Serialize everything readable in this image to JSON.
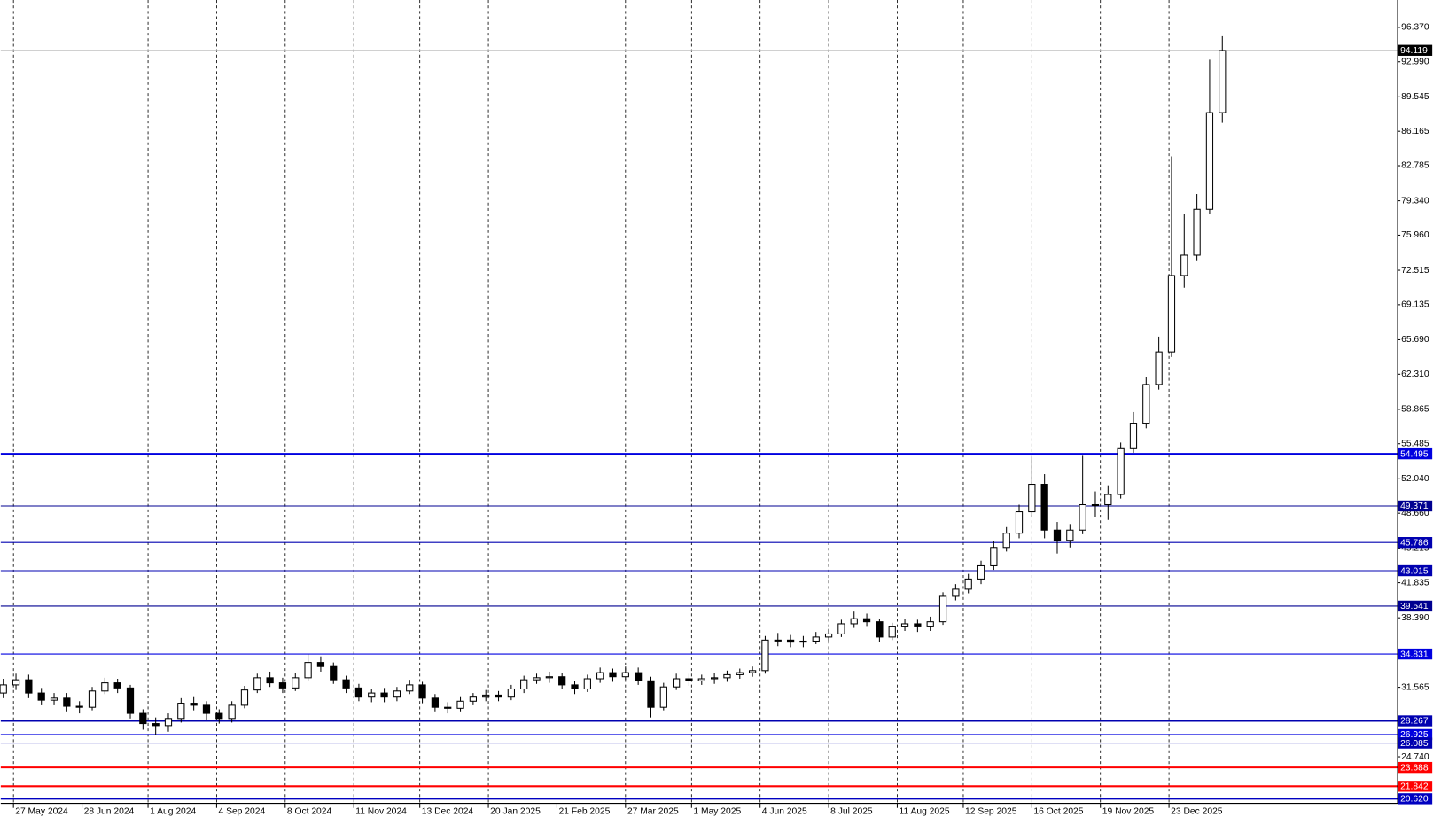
{
  "chart_data": {
    "type": "candlestick",
    "x": [
      0,
      5,
      10,
      15,
      20,
      25,
      30,
      35,
      40,
      45,
      50,
      55,
      60,
      65,
      70,
      75,
      80,
      85,
      90,
      95,
      100,
      105,
      110,
      115,
      120,
      125,
      130,
      135,
      140,
      145,
      150,
      155,
      160,
      165,
      170,
      175,
      180,
      185,
      190,
      195,
      200,
      205,
      210,
      215,
      220,
      225,
      230,
      235,
      240,
      245,
      250,
      255,
      260,
      265,
      270,
      275,
      280,
      285,
      290,
      295,
      300,
      305,
      310,
      315,
      320,
      325,
      330,
      335,
      340,
      345,
      350,
      355,
      360,
      365,
      370,
      375,
      380,
      385,
      390,
      395,
      400,
      405,
      410,
      415,
      420,
      425,
      430,
      435,
      440,
      445,
      450,
      455,
      460,
      465,
      470,
      475,
      480
    ],
    "open": [
      31.0,
      31.8,
      32.3,
      31.0,
      30.3,
      30.5,
      29.7,
      29.6,
      31.2,
      32.0,
      31.5,
      29.0,
      28.0,
      27.8,
      28.5,
      30.0,
      29.8,
      29.0,
      28.5,
      29.8,
      31.3,
      32.5,
      32.0,
      31.5,
      32.5,
      34.0,
      33.6,
      32.3,
      31.5,
      30.6,
      31.0,
      30.6,
      31.2,
      31.8,
      30.5,
      29.6,
      29.5,
      30.2,
      30.6,
      30.8,
      30.6,
      31.4,
      32.3,
      32.5,
      32.6,
      31.8,
      31.4,
      32.4,
      33.0,
      32.6,
      33.0,
      32.2,
      29.6,
      31.6,
      32.4,
      32.2,
      32.4,
      32.5,
      32.8,
      33.0,
      33.2,
      36.2,
      36.2,
      36.0,
      36.1,
      36.5,
      36.8,
      37.8,
      38.3,
      38.0,
      36.5,
      37.5,
      37.8,
      37.5,
      38.0,
      40.5,
      41.2,
      42.2,
      43.5,
      45.3,
      46.7,
      48.8,
      51.5,
      47.0,
      46.0,
      47.0,
      49.5,
      49.5,
      50.5,
      55.0,
      57.5,
      61.3,
      64.5,
      72.0,
      74.0,
      78.5,
      88.0
    ],
    "high": [
      32.4,
      32.9,
      32.8,
      31.5,
      31.0,
      31.0,
      30.2,
      31.6,
      32.5,
      32.4,
      31.8,
      29.4,
      28.6,
      29.0,
      30.5,
      30.6,
      30.2,
      29.4,
      30.2,
      31.7,
      32.9,
      33.1,
      32.5,
      33.0,
      34.8,
      34.6,
      34.0,
      32.7,
      31.9,
      31.4,
      31.5,
      31.6,
      32.3,
      32.1,
      30.9,
      30.1,
      30.6,
      31.0,
      31.3,
      31.2,
      31.8,
      32.7,
      32.9,
      33.1,
      33.0,
      32.2,
      32.8,
      33.5,
      33.4,
      33.6,
      33.5,
      32.6,
      32.0,
      32.9,
      32.9,
      32.8,
      33.0,
      33.2,
      33.4,
      33.6,
      36.6,
      36.9,
      36.7,
      36.6,
      37.0,
      37.3,
      38.2,
      39.0,
      38.8,
      38.3,
      37.9,
      38.3,
      38.2,
      38.5,
      40.9,
      41.7,
      42.7,
      44.0,
      45.9,
      47.3,
      49.5,
      54.2,
      52.5,
      47.8,
      47.6,
      54.3,
      50.8,
      51.4,
      55.6,
      58.6,
      62.0,
      66.0,
      83.7,
      78.0,
      80.0,
      93.2,
      95.5
    ],
    "low": [
      30.5,
      31.3,
      30.5,
      29.8,
      29.8,
      29.2,
      29.0,
      29.3,
      30.9,
      31.0,
      28.5,
      27.4,
      26.9,
      27.2,
      28.1,
      29.3,
      28.4,
      28.0,
      28.1,
      29.5,
      31.0,
      31.6,
      31.0,
      31.2,
      32.2,
      33.1,
      31.9,
      31.0,
      30.2,
      30.1,
      30.1,
      30.2,
      30.9,
      30.0,
      29.2,
      29.0,
      29.2,
      29.8,
      30.2,
      30.2,
      30.3,
      31.0,
      31.9,
      32.0,
      31.4,
      30.9,
      31.1,
      32.0,
      32.1,
      32.3,
      31.8,
      28.6,
      29.3,
      31.3,
      31.7,
      31.8,
      31.9,
      32.1,
      32.4,
      32.6,
      32.9,
      35.6,
      35.5,
      35.5,
      35.8,
      36.1,
      36.5,
      37.4,
      37.5,
      36.0,
      36.2,
      37.1,
      37.0,
      37.1,
      37.7,
      40.1,
      40.8,
      41.7,
      43.1,
      44.9,
      46.2,
      48.3,
      46.2,
      44.7,
      45.3,
      46.6,
      48.3,
      48.0,
      50.1,
      54.6,
      57.0,
      60.8,
      64.0,
      70.8,
      73.5,
      78.0,
      87.0
    ],
    "close": [
      31.8,
      32.3,
      31.0,
      30.3,
      30.5,
      29.7,
      29.6,
      31.2,
      32.0,
      31.5,
      29.0,
      28.0,
      27.8,
      28.5,
      30.0,
      29.8,
      29.0,
      28.5,
      29.8,
      31.3,
      32.5,
      32.0,
      31.5,
      32.5,
      34.0,
      33.6,
      32.3,
      31.5,
      30.6,
      31.0,
      30.6,
      31.2,
      31.8,
      30.5,
      29.6,
      29.5,
      30.2,
      30.6,
      30.8,
      30.6,
      31.4,
      32.3,
      32.5,
      32.6,
      31.8,
      31.4,
      32.4,
      33.0,
      32.6,
      33.0,
      32.2,
      29.6,
      31.6,
      32.4,
      32.2,
      32.4,
      32.5,
      32.8,
      33.0,
      33.2,
      36.2,
      36.2,
      36.0,
      36.1,
      36.5,
      36.8,
      37.8,
      38.3,
      38.0,
      36.5,
      37.5,
      37.8,
      37.5,
      38.0,
      40.5,
      41.2,
      42.2,
      43.5,
      45.3,
      46.7,
      48.8,
      51.5,
      47.0,
      46.0,
      47.0,
      49.5,
      49.5,
      50.5,
      55.0,
      57.5,
      61.3,
      64.5,
      72.0,
      74.0,
      78.5,
      88.0,
      94.1
    ],
    "up_color": "#ffffff",
    "down_color": "#000000",
    "outline_color": "#000000",
    "xlim": [
      -1,
      549
    ],
    "xticks": [
      {
        "value": 4,
        "label": "27 May 2024"
      },
      {
        "value": 31,
        "label": "28 Jun 2024"
      },
      {
        "value": 57,
        "label": "1 Aug 2024"
      },
      {
        "value": 84,
        "label": "4 Sep 2024"
      },
      {
        "value": 111,
        "label": "8 Oct 2024"
      },
      {
        "value": 138,
        "label": "11 Nov 2024"
      },
      {
        "value": 164,
        "label": "13 Dec 2024"
      },
      {
        "value": 191,
        "label": "20 Jan 2025"
      },
      {
        "value": 218,
        "label": "21 Feb 2025"
      },
      {
        "value": 245,
        "label": "27 Mar 2025"
      },
      {
        "value": 271,
        "label": "1 May 2025"
      },
      {
        "value": 298,
        "label": "4 Jun 2025"
      },
      {
        "value": 325,
        "label": "8 Jul 2025"
      },
      {
        "value": 352,
        "label": "11 Aug 2025"
      },
      {
        "value": 378,
        "label": "12 Sep 2025"
      },
      {
        "value": 405,
        "label": "16 Oct 2025"
      },
      {
        "value": 432,
        "label": "19 Nov 2025"
      },
      {
        "value": 459,
        "label": "23 Dec 2025"
      }
    ],
    "ylim": [
      20.17,
      99.06
    ],
    "yticks": [
      {
        "value": 96.37,
        "label": "96.370"
      },
      {
        "value": 92.99,
        "label": "92.990"
      },
      {
        "value": 89.545,
        "label": "89.545"
      },
      {
        "value": 86.165,
        "label": "86.165"
      },
      {
        "value": 82.785,
        "label": "82.785"
      },
      {
        "value": 79.34,
        "label": "79.340"
      },
      {
        "value": 75.96,
        "label": "75.960"
      },
      {
        "value": 72.515,
        "label": "72.515"
      },
      {
        "value": 69.135,
        "label": "69.135"
      },
      {
        "value": 65.69,
        "label": "65.690"
      },
      {
        "value": 62.31,
        "label": "62.310"
      },
      {
        "value": 58.865,
        "label": "58.865"
      },
      {
        "value": 55.485,
        "label": "55.485"
      },
      {
        "value": 52.04,
        "label": "52.040"
      },
      {
        "value": 48.66,
        "label": "48.660"
      },
      {
        "value": 45.215,
        "label": "45.215"
      },
      {
        "value": 41.835,
        "label": "41.835"
      },
      {
        "value": 38.39,
        "label": "38.390"
      },
      {
        "value": 31.565,
        "label": "31.565"
      },
      {
        "value": 24.74,
        "label": "24.740"
      }
    ],
    "grid": true,
    "levels": [
      {
        "value": 54.495,
        "label": "54.495",
        "color": "#0000e0",
        "width": 2
      },
      {
        "value": 49.371,
        "label": "49.371",
        "color": "#000090",
        "width": 1
      },
      {
        "value": 45.786,
        "label": "45.786",
        "color": "#0000b0",
        "width": 1
      },
      {
        "value": 43.015,
        "label": "43.015",
        "color": "#0000b0",
        "width": 1
      },
      {
        "value": 39.541,
        "label": "39.541",
        "color": "#000090",
        "width": 1
      },
      {
        "value": 34.831,
        "label": "34.831",
        "color": "#0000e0",
        "width": 1
      },
      {
        "value": 28.267,
        "label": "28.267",
        "color": "#0000b0",
        "width": 2
      },
      {
        "value": 26.925,
        "label": "26.925",
        "color": "#0000e0",
        "width": 1
      },
      {
        "value": 26.085,
        "label": "26.085",
        "color": "#0000b0",
        "width": 1
      },
      {
        "value": 23.688,
        "label": "23.688",
        "color": "#ff0000",
        "width": 2
      },
      {
        "value": 21.842,
        "label": "21.842",
        "color": "#ff0000",
        "width": 2
      },
      {
        "value": 20.62,
        "label": "20.620",
        "color": "#0000c0",
        "width": 2
      }
    ],
    "last_price": {
      "value": 94.119,
      "label": "94.119",
      "color": "#000000",
      "line_color": "#c0c0c0"
    }
  }
}
